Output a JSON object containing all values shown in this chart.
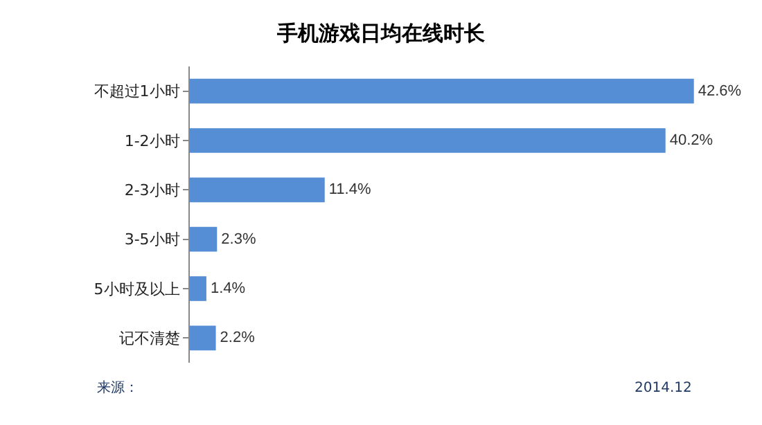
{
  "chart_data": {
    "type": "bar",
    "orientation": "horizontal",
    "title": "手机游戏日均在线时长",
    "categories": [
      "不超过1小时",
      "1-2小时",
      "2-3小时",
      "3-5小时",
      "5小时及以上",
      "记不清楚"
    ],
    "values": [
      42.6,
      40.2,
      11.4,
      2.3,
      1.4,
      2.2
    ],
    "value_labels": [
      "42.6%",
      "40.2%",
      "11.4%",
      "2.3%",
      "1.4%",
      "2.2%"
    ],
    "color": "#558ed5",
    "tick_labels": "y",
    "annotations": [
      "来源：",
      "2014.12"
    ]
  }
}
